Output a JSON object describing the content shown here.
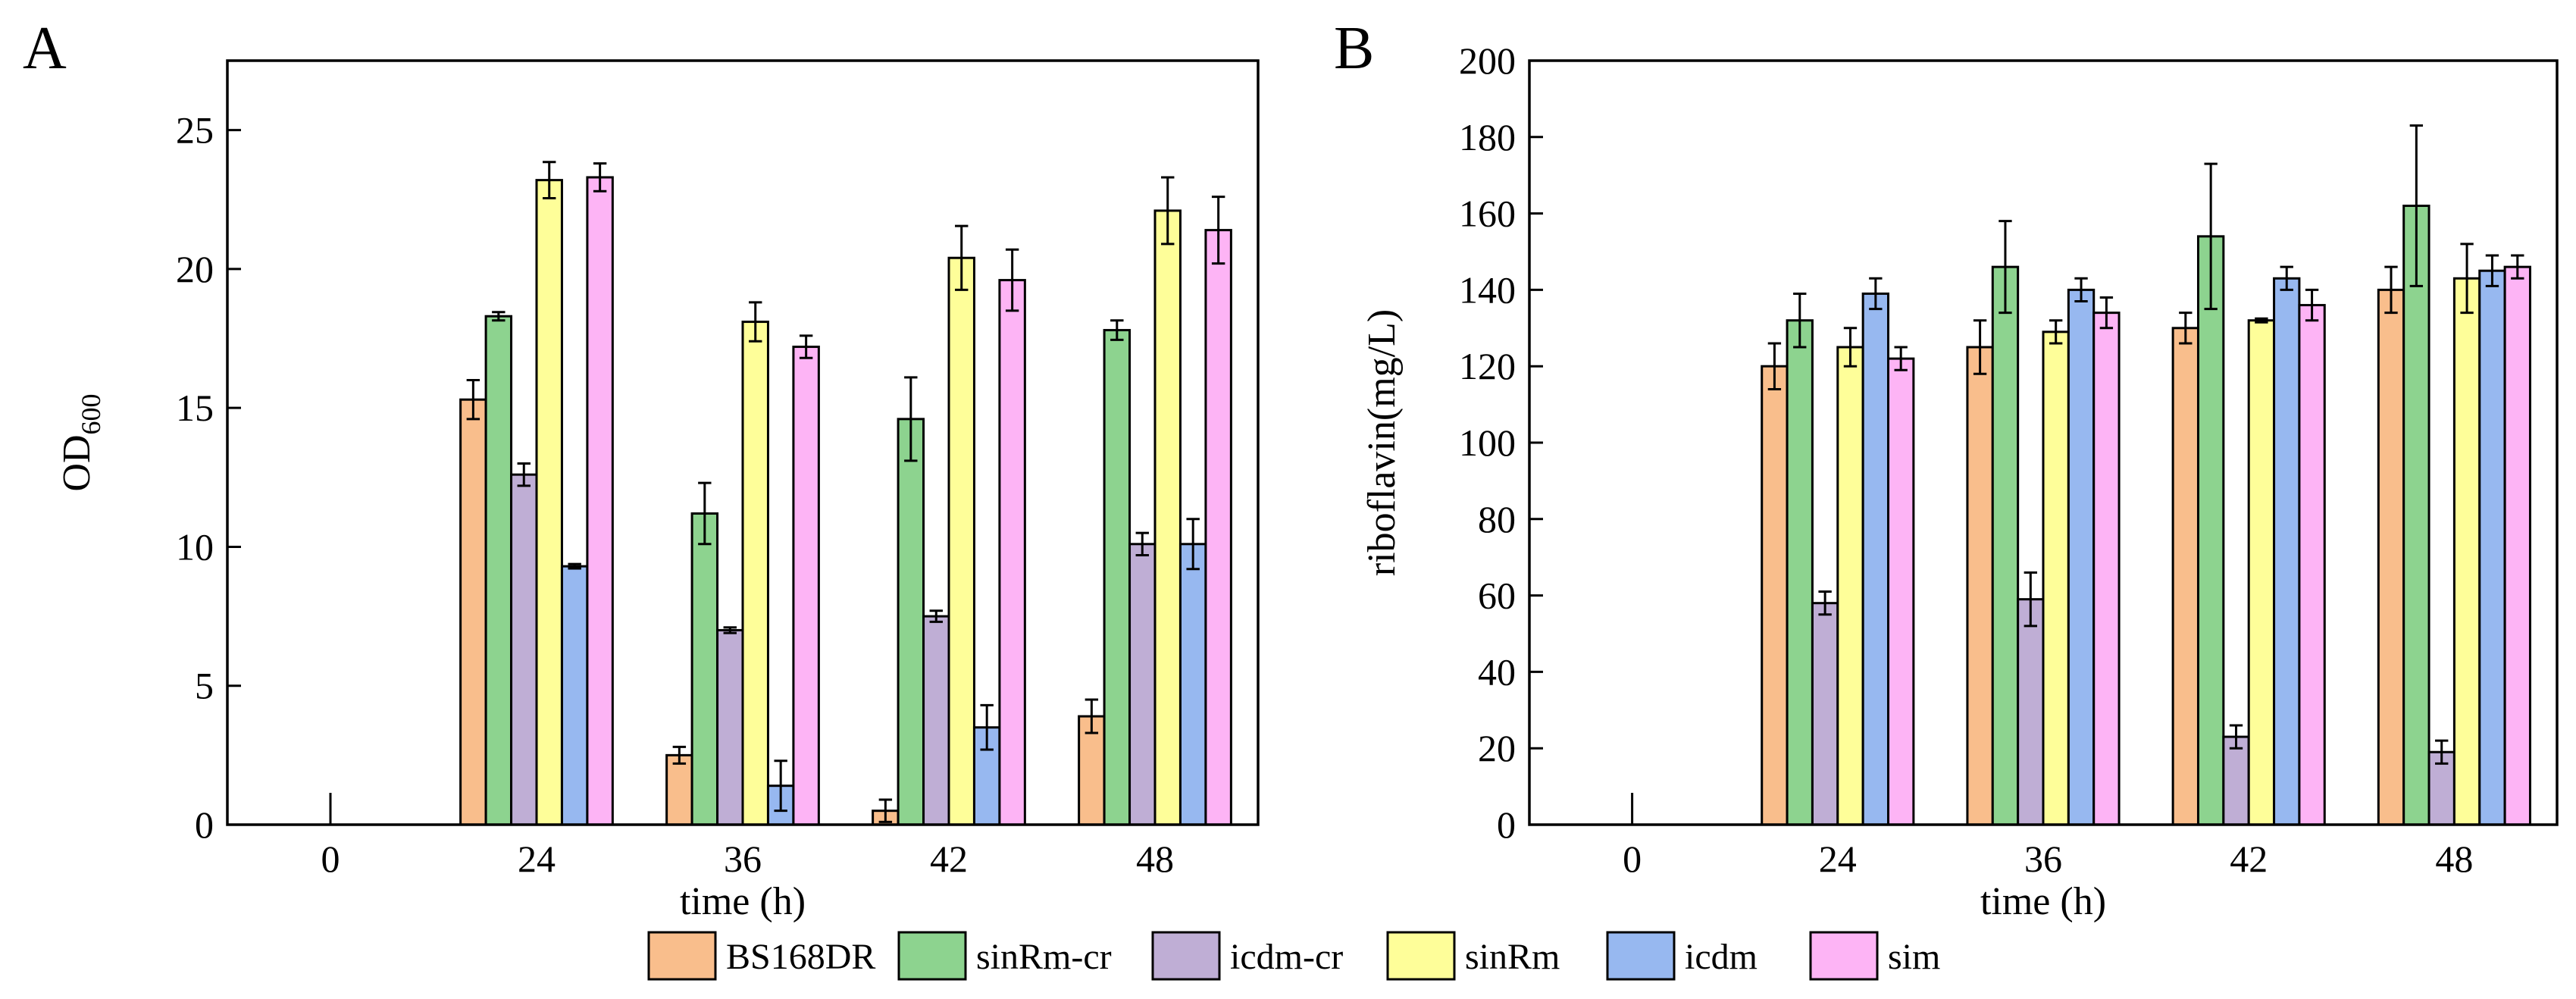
{
  "panel_letters": {
    "a": "A",
    "b": "B"
  },
  "legend": [
    "BS168DR",
    "sinRm-cr",
    "icdm-cr",
    "sinRm",
    "icdm",
    "sim"
  ],
  "colors": [
    "#F9BE8C",
    "#8DD38F",
    "#BFAED5",
    "#FEFE99",
    "#97B8F0",
    "#FDB4F5"
  ],
  "chart_data": [
    {
      "type": "bar",
      "panel": "A",
      "title": "",
      "xlabel": "time (h)",
      "ylabel_main": "OD",
      "ylabel_sub": "600",
      "categories": [
        "0",
        "24",
        "36",
        "42",
        "48"
      ],
      "yticks": [
        "0",
        "5",
        "10",
        "15",
        "20",
        "25"
      ],
      "ylim": [
        0,
        27.5
      ],
      "series": [
        {
          "name": "BS168DR",
          "values": [
            0,
            15.3,
            2.5,
            0.5,
            3.9
          ],
          "errors": [
            0,
            0.7,
            0.3,
            0.4,
            0.6
          ]
        },
        {
          "name": "sinRm-cr",
          "values": [
            0,
            18.3,
            11.2,
            14.6,
            17.8
          ],
          "errors": [
            0,
            0.15,
            1.1,
            1.5,
            0.35
          ]
        },
        {
          "name": "icdm-cr",
          "values": [
            0,
            12.6,
            7.0,
            7.5,
            10.1
          ],
          "errors": [
            0,
            0.4,
            0.1,
            0.2,
            0.4
          ]
        },
        {
          "name": "sinRm",
          "values": [
            0,
            23.2,
            18.1,
            20.4,
            22.1
          ],
          "errors": [
            0,
            0.65,
            0.7,
            1.15,
            1.2
          ]
        },
        {
          "name": "icdm",
          "values": [
            0,
            9.3,
            1.4,
            3.5,
            10.1
          ],
          "errors": [
            0,
            0.08,
            0.9,
            0.8,
            0.9
          ]
        },
        {
          "name": "sim",
          "values": [
            0,
            23.3,
            17.2,
            19.6,
            21.4
          ],
          "errors": [
            0,
            0.5,
            0.4,
            1.1,
            1.2
          ]
        }
      ]
    },
    {
      "type": "bar",
      "panel": "B",
      "title": "",
      "xlabel": "time (h)",
      "ylabel_main": "riboflavin(mg/L)",
      "ylabel_sub": "",
      "categories": [
        "0",
        "24",
        "36",
        "42",
        "48"
      ],
      "yticks": [
        "0",
        "20",
        "40",
        "60",
        "80",
        "100",
        "120",
        "140",
        "160",
        "180",
        "200"
      ],
      "ylim": [
        0,
        200
      ],
      "series": [
        {
          "name": "BS168DR",
          "values": [
            0,
            120,
            125,
            130,
            140
          ],
          "errors": [
            0,
            6,
            7,
            4,
            6
          ]
        },
        {
          "name": "sinRm-cr",
          "values": [
            0,
            132,
            146,
            154,
            162
          ],
          "errors": [
            0,
            7,
            12,
            19,
            21
          ]
        },
        {
          "name": "icdm-cr",
          "values": [
            0,
            58,
            59,
            23,
            19
          ],
          "errors": [
            0,
            3,
            7,
            3,
            3
          ]
        },
        {
          "name": "sinRm",
          "values": [
            0,
            125,
            129,
            132,
            143
          ],
          "errors": [
            0,
            5,
            3,
            0.5,
            9
          ]
        },
        {
          "name": "icdm",
          "values": [
            0,
            139,
            140,
            143,
            145
          ],
          "errors": [
            0,
            4,
            3,
            3,
            4
          ]
        },
        {
          "name": "sim",
          "values": [
            0,
            122,
            134,
            136,
            146
          ],
          "errors": [
            0,
            3,
            4,
            4,
            3
          ]
        }
      ]
    }
  ]
}
